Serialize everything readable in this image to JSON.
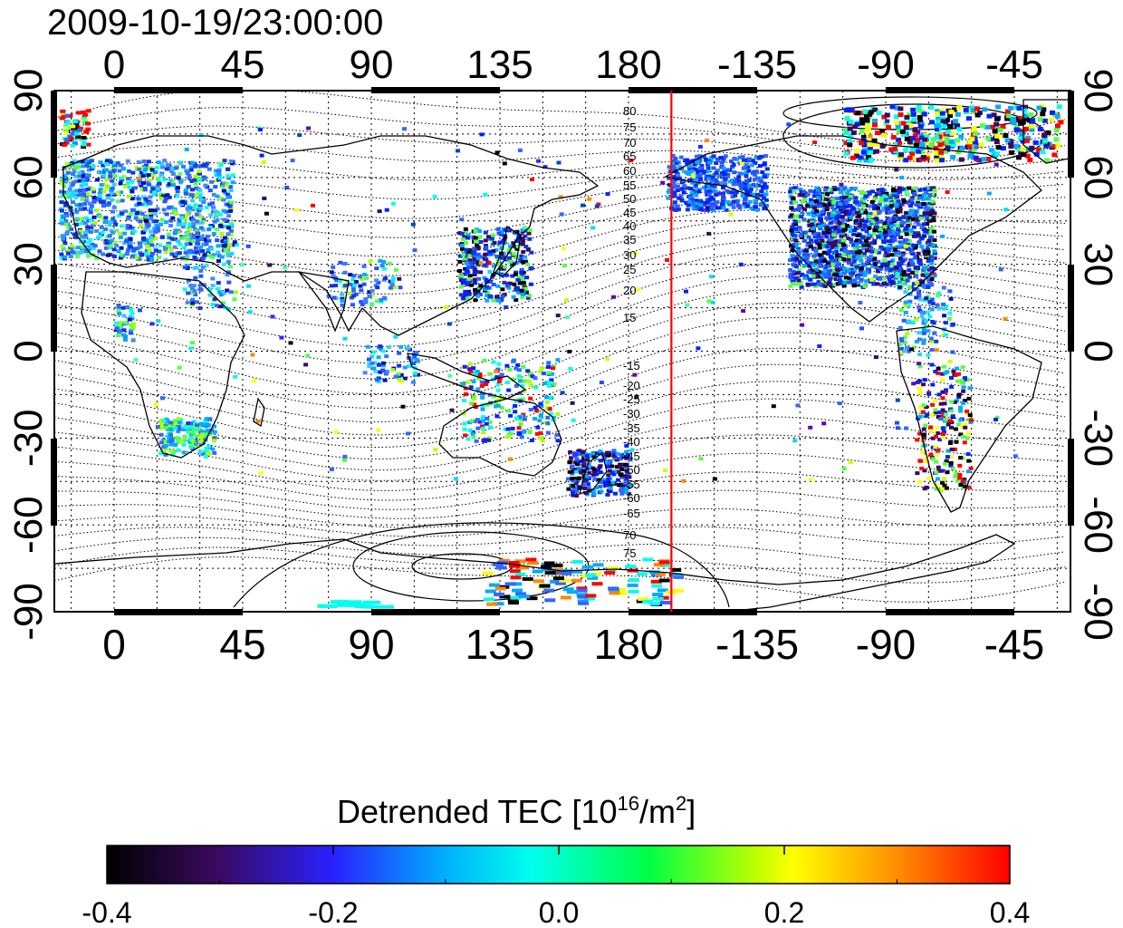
{
  "map": {
    "timestamp": "2009-10-19/23:00:00",
    "longitude_ticks": [
      "0",
      "45",
      "90",
      "135",
      "180",
      "-135",
      "-90",
      "-45"
    ],
    "latitude_ticks": [
      "90",
      "60",
      "30",
      "0",
      "-30",
      "-60",
      "-90"
    ],
    "terminator_longitude": 195,
    "terminator_color": "#ff0000",
    "contour_labels_north": [
      "80",
      "75",
      "70",
      "65",
      "60",
      "55",
      "50",
      "45",
      "40",
      "35",
      "30",
      "25",
      "20",
      "15"
    ],
    "contour_labels_south": [
      "-15",
      "-20",
      "-25",
      "-30",
      "-35",
      "-40",
      "-45",
      "-50",
      "-55",
      "-60",
      "-65",
      "70",
      "75"
    ]
  },
  "colorbar": {
    "title_main": "Detrended TEC  [10",
    "title_sup1": "16",
    "title_mid": "/m",
    "title_sup2": "2",
    "title_end": "]",
    "tick_labels": [
      "-0.4",
      "-0.2",
      "0.0",
      "0.2",
      "0.4"
    ],
    "range": [
      -0.4,
      0.4
    ]
  }
}
